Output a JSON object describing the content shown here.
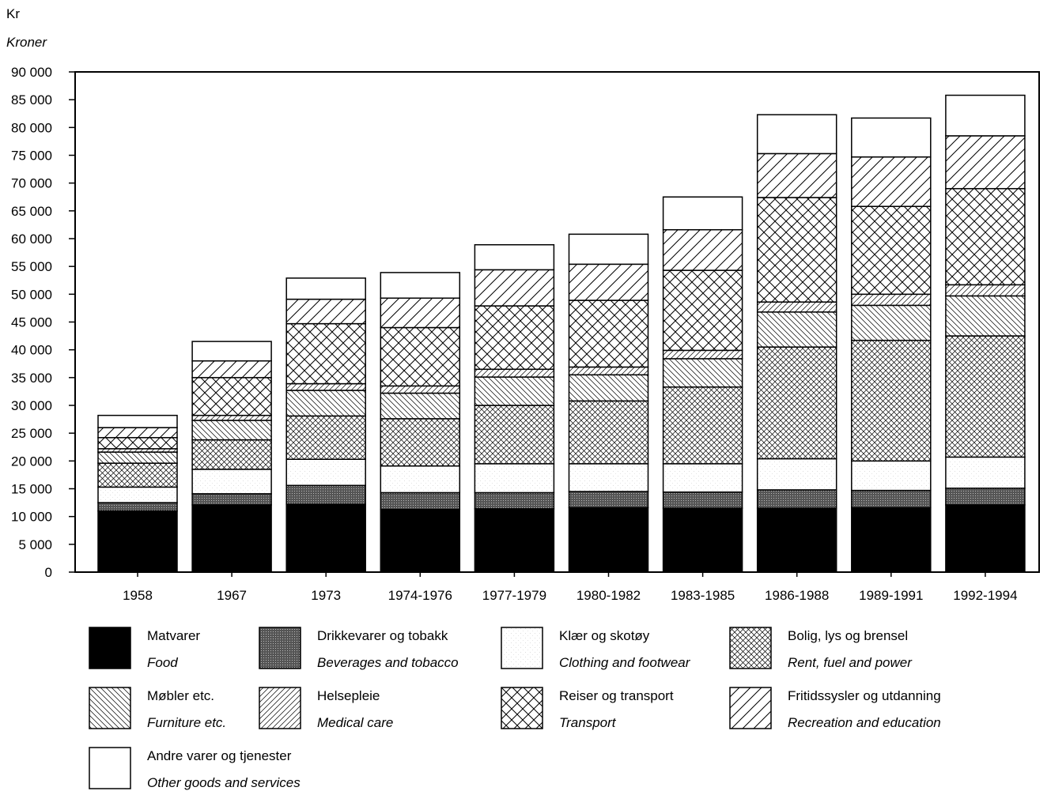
{
  "chart_data": {
    "type": "bar",
    "stacked": true,
    "unit_label": "Kr",
    "unit_label_en": "Kroner",
    "categories": [
      "1958",
      "1967",
      "1973",
      "1974-1976",
      "1977-1979",
      "1980-1982",
      "1983-1985",
      "1986-1988",
      "1989-1991",
      "1992-1994"
    ],
    "ylim": [
      0,
      90000
    ],
    "yticks": [
      "0",
      "5 000",
      "10 000",
      "15 000",
      "20 000",
      "25 000",
      "30 000",
      "35 000",
      "40 000",
      "45 000",
      "50 000",
      "55 000",
      "60 000",
      "65 000",
      "70 000",
      "75 000",
      "80 000",
      "85 000",
      "90 000"
    ],
    "ytick_values": [
      0,
      5000,
      10000,
      15000,
      20000,
      25000,
      30000,
      35000,
      40000,
      45000,
      50000,
      55000,
      60000,
      65000,
      70000,
      75000,
      80000,
      85000,
      90000
    ],
    "grid": false,
    "series": [
      {
        "name": "Matvarer",
        "name_en": "Food",
        "pattern": "solid-black",
        "values": [
          11000,
          12100,
          12200,
          11300,
          11400,
          11600,
          11500,
          11500,
          11600,
          12100
        ]
      },
      {
        "name": "Drikkevarer og tobakk",
        "name_en": "Beverages and tobacco",
        "pattern": "dark-dots",
        "values": [
          1500,
          2000,
          3400,
          3000,
          2900,
          2900,
          2900,
          3300,
          3100,
          3000
        ]
      },
      {
        "name": "Klær og skotøy",
        "name_en": "Clothing and footwear",
        "pattern": "light-stipple",
        "values": [
          2800,
          4400,
          4700,
          4800,
          5200,
          5000,
          5100,
          5600,
          5300,
          5600
        ]
      },
      {
        "name": "Bolig, lys og brensel",
        "name_en": "Rent, fuel and power",
        "pattern": "fine-crosshatch",
        "values": [
          4300,
          5300,
          7800,
          8500,
          10500,
          11300,
          13800,
          20100,
          21700,
          21800
        ]
      },
      {
        "name": "Møbler etc.",
        "name_en": "Furniture etc.",
        "pattern": "back-diagonal",
        "values": [
          2000,
          3500,
          4600,
          4600,
          5100,
          4700,
          5100,
          6300,
          6300,
          7200
        ]
      },
      {
        "name": "Helsepleie",
        "name_en": "Medical care",
        "pattern": "fine-diagonal",
        "values": [
          600,
          900,
          1200,
          1300,
          1400,
          1400,
          1500,
          1800,
          2000,
          2000
        ]
      },
      {
        "name": "Reiser og transport",
        "name_en": "Transport",
        "pattern": "coarse-crosshatch",
        "values": [
          2000,
          6800,
          10800,
          10500,
          11400,
          12000,
          14400,
          18800,
          15800,
          17300
        ]
      },
      {
        "name": "Fritidssysler og utdanning",
        "name_en": "Recreation and education",
        "pattern": "coarse-diagonal",
        "values": [
          1800,
          3000,
          4400,
          5300,
          6500,
          6500,
          7300,
          7900,
          8900,
          9500
        ]
      },
      {
        "name": "Andre varer og tjenester",
        "name_en": "Other goods and services",
        "pattern": "blank",
        "values": [
          2200,
          3500,
          3800,
          4600,
          4500,
          5400,
          5900,
          7000,
          7000,
          7300
        ]
      }
    ]
  }
}
